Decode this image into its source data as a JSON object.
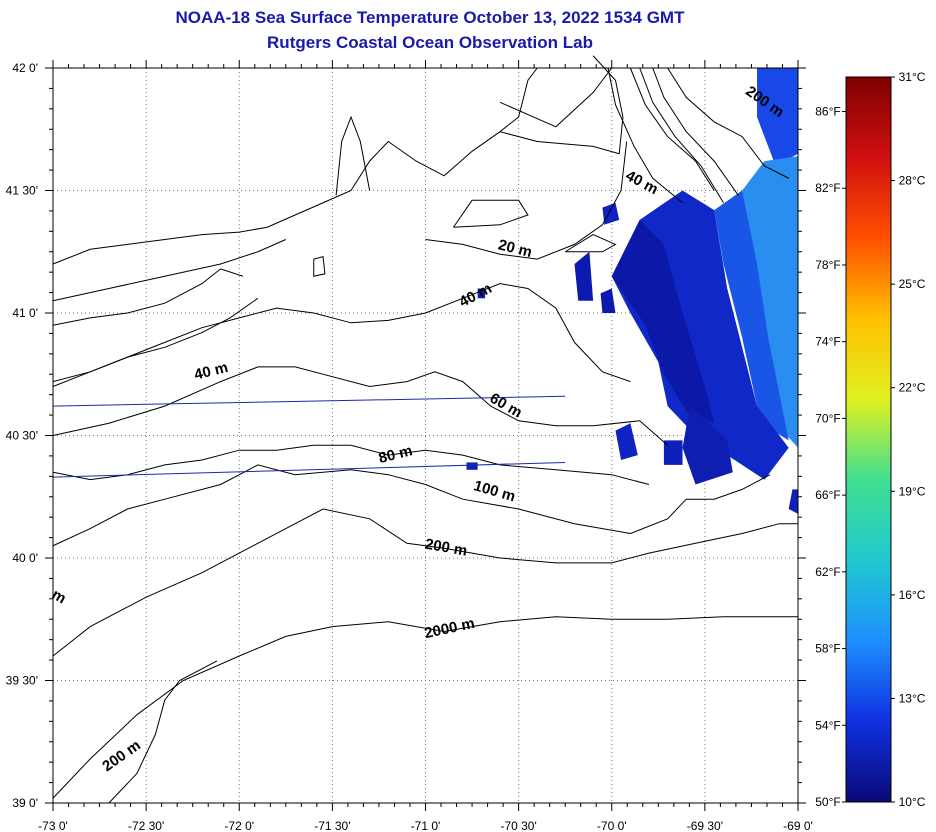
{
  "header": {
    "title": "NOAA-18 Sea Surface Temperature October 13, 2022 1534 GMT",
    "subtitle": "Rutgers Coastal Ocean Observation Lab"
  },
  "map": {
    "lon_range": [
      -73.0,
      -69.0
    ],
    "lat_range": [
      39.0,
      42.0
    ],
    "lon_ticks": [
      {
        "value": -73.0,
        "label": "-73 0'"
      },
      {
        "value": -72.5,
        "label": "-72 30'"
      },
      {
        "value": -72.0,
        "label": "-72 0'"
      },
      {
        "value": -71.5,
        "label": "-71 30'"
      },
      {
        "value": -71.0,
        "label": "-71 0'"
      },
      {
        "value": -70.5,
        "label": "-70 30'"
      },
      {
        "value": -70.0,
        "label": "-70 0'"
      },
      {
        "value": -69.5,
        "label": "-69 30'"
      },
      {
        "value": -69.0,
        "label": "-69 0'"
      }
    ],
    "lat_ticks": [
      {
        "value": 42.0,
        "label": "42 0'"
      },
      {
        "value": 41.5,
        "label": "41 30'"
      },
      {
        "value": 41.0,
        "label": "41 0'"
      },
      {
        "value": 40.5,
        "label": "40 30'"
      },
      {
        "value": 40.0,
        "label": "40 0'"
      },
      {
        "value": 39.5,
        "label": "39 30'"
      },
      {
        "value": 39.0,
        "label": "39 0'"
      }
    ],
    "fahrenheit_ticks": [
      {
        "value": 86,
        "label": "86°F"
      },
      {
        "value": 82,
        "label": "82°F"
      },
      {
        "value": 78,
        "label": "78°F"
      },
      {
        "value": 74,
        "label": "74°F"
      },
      {
        "value": 70,
        "label": "70°F"
      },
      {
        "value": 66,
        "label": "66°F"
      },
      {
        "value": 62,
        "label": "62°F"
      },
      {
        "value": 58,
        "label": "58°F"
      },
      {
        "value": 54,
        "label": "54°F"
      },
      {
        "value": 50,
        "label": "50°F"
      }
    ],
    "grid": "dotted",
    "isobath_labels": [
      {
        "text": "200 m",
        "lon": -69.18,
        "lat": 41.86,
        "angle": 35
      },
      {
        "text": "40 m",
        "lon": -69.84,
        "lat": 41.53,
        "angle": 28
      },
      {
        "text": "20 m",
        "lon": -70.52,
        "lat": 41.26,
        "angle": 14
      },
      {
        "text": "40 m",
        "lon": -70.73,
        "lat": 41.07,
        "angle": -28
      },
      {
        "text": "40 m",
        "lon": -72.15,
        "lat": 40.76,
        "angle": -14
      },
      {
        "text": "60 m",
        "lon": -70.57,
        "lat": 40.62,
        "angle": 30
      },
      {
        "text": "80 m",
        "lon": -71.16,
        "lat": 40.42,
        "angle": -14
      },
      {
        "text": "100 m",
        "lon": -70.63,
        "lat": 40.27,
        "angle": 16
      },
      {
        "text": "200 m",
        "lon": -70.89,
        "lat": 40.04,
        "angle": 10
      },
      {
        "text": "2000 m",
        "lon": -70.87,
        "lat": 39.71,
        "angle": -12
      },
      {
        "text": "200 m",
        "lon": -72.63,
        "lat": 39.19,
        "angle": -35
      },
      {
        "text": "m",
        "lon": -72.97,
        "lat": 39.84,
        "angle": 30
      }
    ]
  },
  "colorbar": {
    "min_c": 10,
    "max_c": 31,
    "celsius_ticks": [
      {
        "value": 31,
        "label": "31°C"
      },
      {
        "value": 28,
        "label": "28°C"
      },
      {
        "value": 25,
        "label": "25°C"
      },
      {
        "value": 22,
        "label": "22°C"
      },
      {
        "value": 19,
        "label": "19°C"
      },
      {
        "value": 16,
        "label": "16°C"
      },
      {
        "value": 13,
        "label": "13°C"
      },
      {
        "value": 10,
        "label": "10°C"
      }
    ],
    "colors": [
      "#0a0a78",
      "#1030e0",
      "#1e90ff",
      "#20c8d0",
      "#40e090",
      "#e0f020",
      "#ffc000",
      "#ff5000",
      "#d01010",
      "#800000"
    ]
  }
}
